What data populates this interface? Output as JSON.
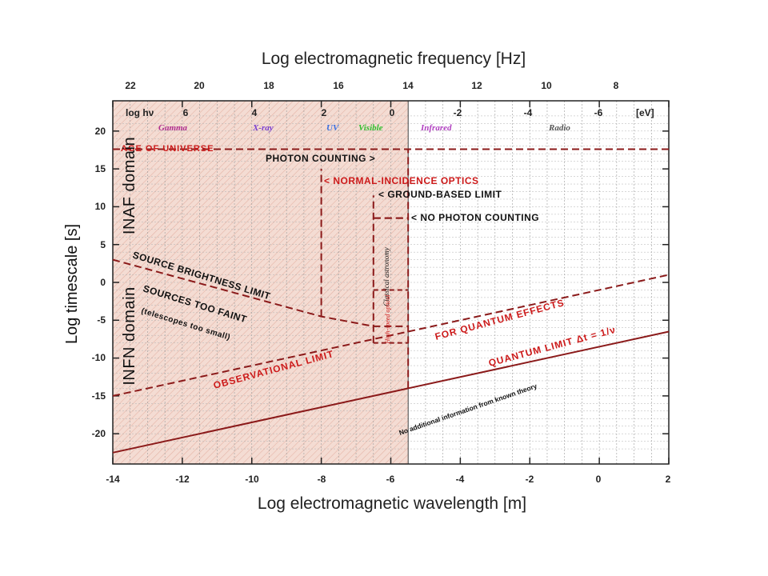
{
  "chart_data": {
    "type": "line",
    "title": "Log electromagnetic frequency [Hz]",
    "xlabel": "Log electromagnetic wavelength [m]",
    "ylabel": "Log timescale [s]",
    "xlim": [
      -14,
      2
    ],
    "ylim": [
      -24,
      24
    ],
    "x_ticks": [
      "-14",
      "-12",
      "-10",
      "-8",
      "-6",
      "-4",
      "-2",
      "0",
      "2"
    ],
    "y_ticks": [
      "20",
      "15",
      "10",
      "5",
      "0",
      "-5",
      "-10",
      "-15",
      "-20"
    ],
    "freq_ticks": [
      "22",
      "20",
      "18",
      "16",
      "14",
      "12",
      "10",
      "8"
    ],
    "energy_label": "log hν",
    "energy_ticks": [
      "6",
      "4",
      "2",
      "0",
      "-2",
      "-4",
      "-6"
    ],
    "energy_unit": "[eV]",
    "bands": [
      {
        "label": "Gamma",
        "color": "#b03090"
      },
      {
        "label": "X-ray",
        "color": "#7a3fd0"
      },
      {
        "label": "UV",
        "color": "#3a6fe0"
      },
      {
        "label": "Visible",
        "color": "#2fbf2f"
      },
      {
        "label": "Infrared",
        "color": "#b040c0"
      },
      {
        "label": "Radio",
        "color": "#555555"
      }
    ],
    "series": [
      {
        "name": "QUANTUM LIMIT Δt = 1/ν",
        "style": "solid",
        "points": [
          [
            -14,
            -22.5
          ],
          [
            2,
            -6.5
          ]
        ]
      },
      {
        "name": "OBSERVATIONAL LIMIT",
        "style": "dashed",
        "points": [
          [
            -14,
            -15
          ],
          [
            -5.5,
            -6.5
          ]
        ]
      },
      {
        "name": "FOR QUANTUM EFFECTS",
        "style": "dashed",
        "points": [
          [
            -5.5,
            -6.5
          ],
          [
            2,
            1
          ]
        ]
      },
      {
        "name": "SOURCE BRIGHTNESS LIMIT",
        "style": "dashed",
        "points": [
          [
            -14,
            3
          ],
          [
            -8,
            -4.5
          ],
          [
            -6.5,
            -5.8
          ],
          [
            -5.5,
            -5.8
          ]
        ]
      },
      {
        "name": "AGE OF UNIVERSE",
        "style": "dashed",
        "points": [
          [
            -14,
            17.6
          ],
          [
            2,
            17.6
          ]
        ]
      },
      {
        "name": "NORMAL-INCIDENCE OPTICS",
        "style": "dashed",
        "points": [
          [
            -8,
            -4.5
          ],
          [
            -8,
            15
          ]
        ]
      },
      {
        "name": "GROUND-BASED LIMIT",
        "style": "dashed",
        "points": [
          [
            -6.5,
            -8
          ],
          [
            -6.5,
            11.5
          ]
        ]
      },
      {
        "name": "NO PHOTON COUNTING",
        "style": "dashed",
        "points": [
          [
            -6.5,
            8.5
          ],
          [
            -5.5,
            8.5
          ]
        ]
      },
      {
        "name": "PHOTON COUNTING",
        "style": "dashed",
        "points": [
          [
            -5.5,
            -14
          ],
          [
            -5.5,
            17.6
          ]
        ]
      }
    ],
    "annotations": {
      "age": "AGE OF UNIVERSE",
      "photon": "PHOTON COUNTING >",
      "normal": "< NORMAL-INCIDENCE OPTICS",
      "ground": "< GROUND-BASED LIMIT",
      "nophoton": "< NO PHOTON COUNTING",
      "brightness": "SOURCE BRIGHTNESS LIMIT",
      "faint": "SOURCES TOO FAINT",
      "telescopes": "(telescopes too small)",
      "observational": "OBSERVATIONAL LIMIT",
      "quantum_effects": "FOR QUANTUM EFFECTS",
      "quantum_limit": "QUANTUM LIMIT Δt = 1/ν",
      "no_info": "No additional information from known theory",
      "classical": "Classical astronomy",
      "highspeed": "High-speed optical"
    },
    "domains": {
      "inaf": "INAF domain",
      "infn": "INFN domain"
    },
    "grid": true,
    "shaded_region_x": [
      -14,
      -5.5
    ],
    "colors": {
      "curve": "#8b1a1a",
      "red_text": "#cc1a1a",
      "shade": "#f3d9cf"
    }
  }
}
